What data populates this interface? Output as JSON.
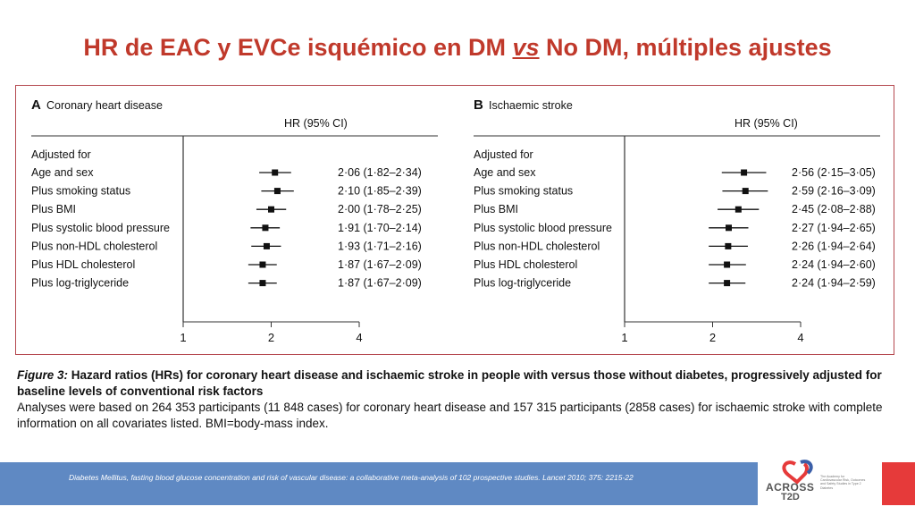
{
  "title": {
    "prefix": "HR de EAC y EVCe isquémico en DM ",
    "vs": "vs",
    "suffix": " No DM, múltiples ajustes"
  },
  "chart_data": [
    {
      "type": "forest",
      "panel_letter": "A",
      "panel_title": "Coronary heart disease",
      "column_header": "HR (95% CI)",
      "group_label": "Adjusted for",
      "x_scale": "log",
      "xlim": [
        1,
        4
      ],
      "xticks": [
        "1",
        "2",
        "4"
      ],
      "rows": [
        {
          "label": "Age and sex",
          "hr": 2.06,
          "lo": 1.82,
          "hi": 2.34,
          "text": "2·06 (1·82–2·34)"
        },
        {
          "label": "Plus smoking status",
          "hr": 2.1,
          "lo": 1.85,
          "hi": 2.39,
          "text": "2·10 (1·85–2·39)"
        },
        {
          "label": "Plus BMI",
          "hr": 2.0,
          "lo": 1.78,
          "hi": 2.25,
          "text": "2·00 (1·78–2·25)"
        },
        {
          "label": "Plus systolic blood pressure",
          "hr": 1.91,
          "lo": 1.7,
          "hi": 2.14,
          "text": "1·91 (1·70–2·14)"
        },
        {
          "label": "Plus non-HDL cholesterol",
          "hr": 1.93,
          "lo": 1.71,
          "hi": 2.16,
          "text": "1·93 (1·71–2·16)"
        },
        {
          "label": "Plus HDL cholesterol",
          "hr": 1.87,
          "lo": 1.67,
          "hi": 2.09,
          "text": "1·87 (1·67–2·09)"
        },
        {
          "label": "Plus log-triglyceride",
          "hr": 1.87,
          "lo": 1.67,
          "hi": 2.09,
          "text": "1·87 (1·67–2·09)"
        }
      ]
    },
    {
      "type": "forest",
      "panel_letter": "B",
      "panel_title": "Ischaemic stroke",
      "column_header": "HR (95% CI)",
      "group_label": "Adjusted for",
      "x_scale": "log",
      "xlim": [
        1,
        4
      ],
      "xticks": [
        "1",
        "2",
        "4"
      ],
      "rows": [
        {
          "label": "Age and sex",
          "hr": 2.56,
          "lo": 2.15,
          "hi": 3.05,
          "text": "2·56 (2·15–3·05)"
        },
        {
          "label": "Plus smoking status",
          "hr": 2.59,
          "lo": 2.16,
          "hi": 3.09,
          "text": "2·59 (2·16–3·09)"
        },
        {
          "label": "Plus BMI",
          "hr": 2.45,
          "lo": 2.08,
          "hi": 2.88,
          "text": "2·45 (2·08–2·88)"
        },
        {
          "label": "Plus systolic blood pressure",
          "hr": 2.27,
          "lo": 1.94,
          "hi": 2.65,
          "text": "2·27 (1·94–2·65)"
        },
        {
          "label": "Plus non-HDL cholesterol",
          "hr": 2.26,
          "lo": 1.94,
          "hi": 2.64,
          "text": "2·26 (1·94–2·64)"
        },
        {
          "label": "Plus HDL cholesterol",
          "hr": 2.24,
          "lo": 1.94,
          "hi": 2.6,
          "text": "2·24 (1·94–2·60)"
        },
        {
          "label": "Plus log-triglyceride",
          "hr": 2.24,
          "lo": 1.94,
          "hi": 2.59,
          "text": "2·24 (1·94–2·59)"
        }
      ]
    }
  ],
  "caption": {
    "figure_label": "Figure 3:",
    "title": " Hazard ratios (HRs) for coronary heart disease and ischaemic stroke in people with versus those without diabetes, progressively adjusted for baseline levels of conventional risk factors",
    "body": "Analyses were based on 264 353 participants (11 848 cases) for coronary heart disease and 157 315 participants (2858 cases) for ischaemic stroke with complete information on all covariates listed. BMI=body-mass index."
  },
  "footer": {
    "citation": "Diabetes Mellitus, fasting blood glucose concentration and risk of vascular disease: a collaborative meta-analysis of 102 prospective studies. Lancet 2010; 375: 2215-22"
  },
  "logo": {
    "name_line1": "ACROSS",
    "name_line2": "T2D",
    "tagline": "The Academy for Cardiovascular Risk, Outcomes and Safety Studies in Type 2 Diabetes"
  },
  "colors": {
    "title": "#c0392b",
    "border": "#b5484f",
    "footer": "#5f89c3",
    "accent_red": "#e63a3a"
  }
}
